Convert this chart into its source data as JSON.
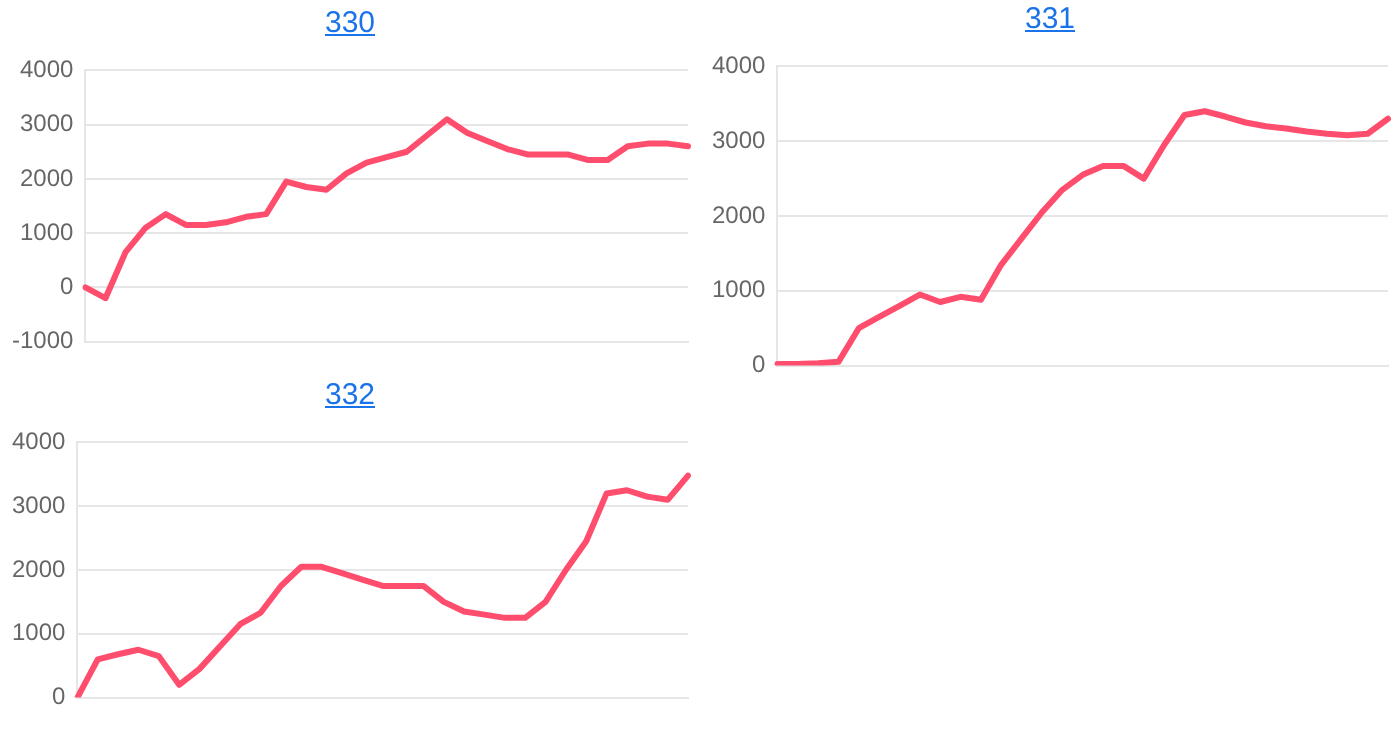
{
  "chart_data": [
    {
      "type": "line",
      "title": "330",
      "categories": [
        null,
        null,
        null,
        null,
        null,
        null,
        null,
        null,
        null,
        null,
        null,
        null,
        null,
        null,
        null,
        null,
        null,
        null,
        null,
        null,
        null,
        null,
        null,
        null,
        null,
        null,
        null,
        null,
        null,
        null,
        null
      ],
      "series": [
        {
          "color": "#ff4d6d",
          "values": [
            0,
            -200,
            650,
            1100,
            1350,
            1150,
            1150,
            1200,
            1300,
            1350,
            1950,
            1850,
            1800,
            2100,
            2300,
            2400,
            2500,
            2800,
            3100,
            2850,
            2700,
            2550,
            2450,
            2450,
            2450,
            2350,
            2350,
            2600,
            2650,
            2650,
            2600
          ]
        }
      ],
      "ylim": [
        -1000,
        4000
      ],
      "yticks": [
        -1000,
        0,
        1000,
        2000,
        3000,
        4000
      ],
      "grid": "y",
      "tick_labels": "y",
      "marker": "none"
    },
    {
      "type": "line",
      "title": "331",
      "categories": [
        null,
        null,
        null,
        null,
        null,
        null,
        null,
        null,
        null,
        null,
        null,
        null,
        null,
        null,
        null,
        null,
        null,
        null,
        null,
        null,
        null,
        null,
        null,
        null,
        null,
        null,
        null,
        null,
        null,
        null,
        null
      ],
      "series": [
        {
          "color": "#ff4d6d",
          "values": [
            20,
            20,
            30,
            50,
            500,
            650,
            800,
            950,
            850,
            920,
            880,
            1350,
            1700,
            2050,
            2350,
            2550,
            2670,
            2670,
            2500,
            2950,
            3350,
            3400,
            3330,
            3250,
            3200,
            3170,
            3130,
            3100,
            3080,
            3100,
            3300
          ]
        }
      ],
      "ylim": [
        0,
        4000
      ],
      "yticks": [
        0,
        1000,
        2000,
        3000,
        4000
      ],
      "grid": "y",
      "tick_labels": "y",
      "marker": "none"
    },
    {
      "type": "line",
      "title": "332",
      "categories": [
        null,
        null,
        null,
        null,
        null,
        null,
        null,
        null,
        null,
        null,
        null,
        null,
        null,
        null,
        null,
        null,
        null,
        null,
        null,
        null,
        null,
        null,
        null,
        null,
        null,
        null,
        null,
        null,
        null,
        null,
        null
      ],
      "series": [
        {
          "color": "#ff4d6d",
          "values": [
            0,
            600,
            680,
            750,
            650,
            200,
            450,
            800,
            1150,
            1330,
            1750,
            2050,
            2050,
            1950,
            1850,
            1750,
            1750,
            1750,
            1500,
            1350,
            1300,
            1250,
            1250,
            1500,
            2000,
            2450,
            3200,
            3250,
            3150,
            3100,
            3480
          ]
        }
      ],
      "ylim": [
        0,
        4000
      ],
      "yticks": [
        0,
        1000,
        2000,
        3000,
        4000
      ],
      "grid": "y",
      "tick_labels": "y",
      "marker": "none"
    }
  ]
}
